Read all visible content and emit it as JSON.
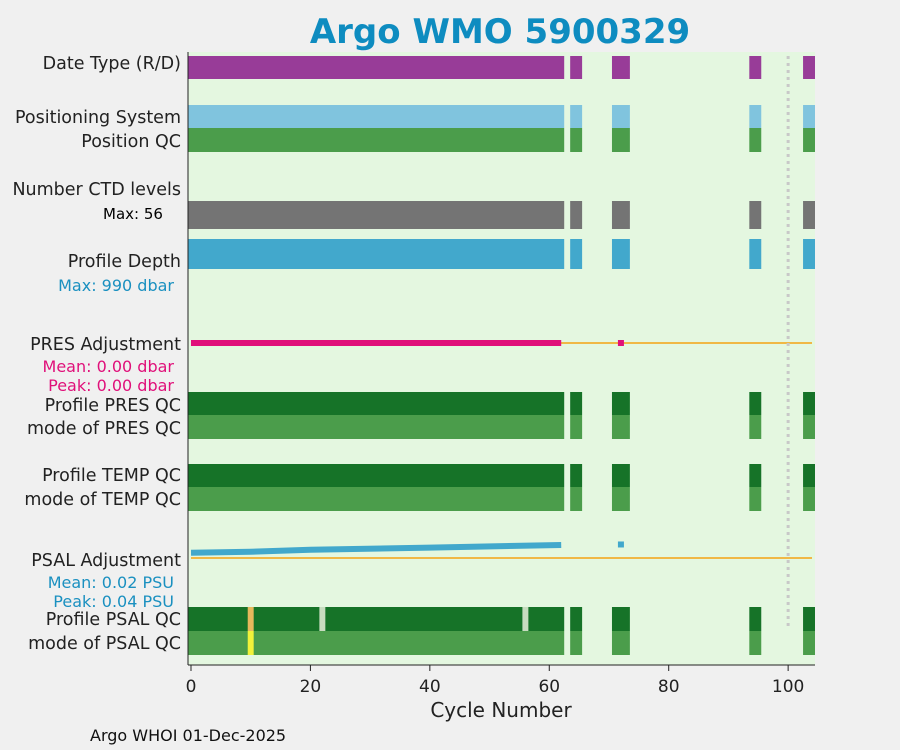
{
  "chart_data": {
    "type": "table",
    "title": "Argo WMO 5900329",
    "xlabel": "Cycle Number",
    "xlim": [
      -0.5,
      104.5
    ],
    "xticks": [
      0,
      20,
      40,
      60,
      80,
      100
    ],
    "footer": "Argo WHOI 01-Dec-2025",
    "row_labels": {
      "date_type": "Date Type (R/D)",
      "positioning_system": "Positioning System",
      "position_qc": "Position QC",
      "n_ctd_levels": "Number CTD levels",
      "profile_depth": "Profile Depth",
      "pres_adjustment": "PRES Adjustment",
      "profile_pres_qc": "Profile PRES QC",
      "mode_pres_qc": "mode of PRES QC",
      "profile_temp_qc": "Profile TEMP QC",
      "mode_temp_qc": "mode of TEMP QC",
      "psal_adjustment": "PSAL Adjustment",
      "profile_psal_qc": "Profile PSAL QC",
      "mode_psal_qc": "mode of PSAL QC"
    },
    "stats": {
      "ctd_max": "Max: 56",
      "depth_max": "Max:  990 dbar",
      "pres_mean": "Mean: 0.00 dbar",
      "pres_peak": "Peak: 0.00 dbar",
      "psal_mean": "Mean: 0.02 PSU",
      "psal_peak": "Peak: 0.04 PSU"
    },
    "cycle_segments": [
      [
        0,
        62
      ],
      [
        64,
        65
      ],
      [
        71,
        73
      ],
      [
        94,
        95
      ],
      [
        103,
        104
      ]
    ],
    "reference_line_cycle": 100,
    "psal_qc_flags": [
      {
        "cycle": 10,
        "profile_color": "#e6b85c",
        "mode_color": "#f2f23a"
      },
      {
        "cycle": 22,
        "profile_color": "#c8dcc0",
        "mode_color": null
      },
      {
        "cycle": 56,
        "profile_color": "#c8dcc0",
        "mode_color": null
      }
    ],
    "psal_adjustment_trend": {
      "cycles": [
        0,
        10,
        20,
        40,
        62,
        72
      ],
      "values": [
        0.01,
        0.012,
        0.016,
        0.02,
        0.025,
        0.026
      ]
    },
    "colors": {
      "background": "#e4f7e0",
      "date_type": "#983c98",
      "positioning": "#80c4de",
      "qc_mode": "#4b9d4b",
      "qc_profile": "#167328",
      "ctd": "#747474",
      "depth": "#42a8cc",
      "pres_line": "#e0107a",
      "zero_line": "#f0b846",
      "ref_line": "#c8c8c8",
      "stat_pres": "#e0107a",
      "stat_psal": "#1a90c0",
      "title": "#0e8cc0"
    }
  }
}
